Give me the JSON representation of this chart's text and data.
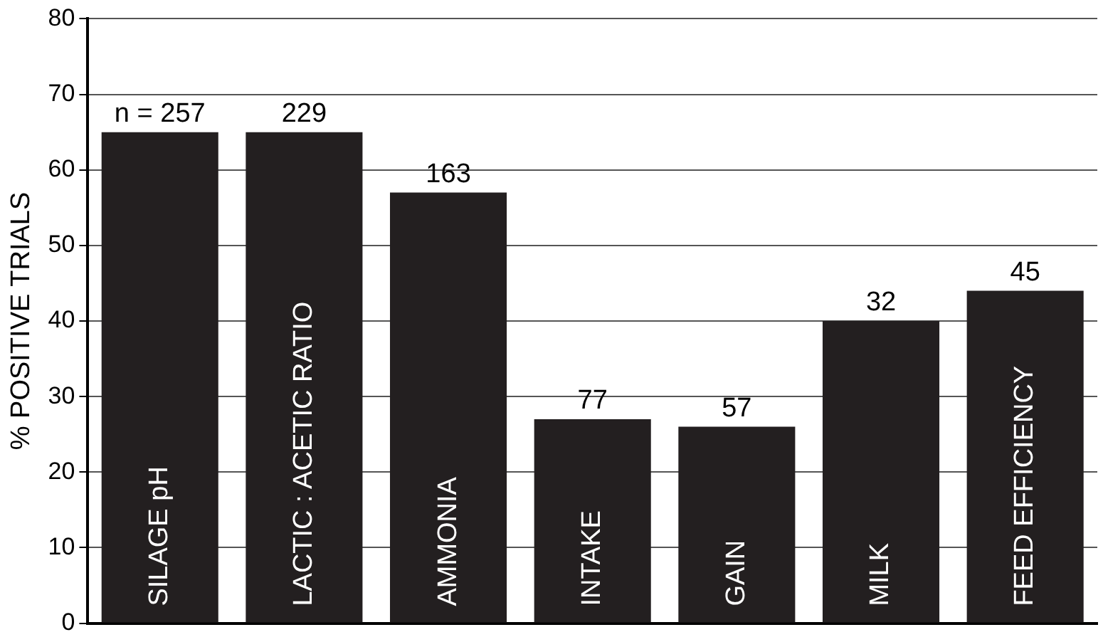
{
  "chart_data": {
    "type": "bar",
    "ylabel": "% POSITIVE TRIALS",
    "categories": [
      "SILAGE pH",
      "LACTIC : ACETIC RATIO",
      "AMMONIA",
      "INTAKE",
      "GAIN",
      "MILK",
      "FEED EFFICIENCY"
    ],
    "values": [
      65,
      65,
      57,
      27,
      26,
      40,
      44
    ],
    "color": "#231f20",
    "ylim": [
      0,
      80
    ],
    "yticks": [
      0,
      10,
      20,
      30,
      40,
      50,
      60,
      70,
      80
    ],
    "grid": "y",
    "legend": false,
    "annotations": [
      {
        "text": "n = 257",
        "x": "SILAGE pH",
        "y": 65
      },
      {
        "text": "229",
        "x": "LACTIC : ACETIC RATIO",
        "y": 65
      },
      {
        "text": "163",
        "x": "AMMONIA",
        "y": 57
      },
      {
        "text": "77",
        "x": "INTAKE",
        "y": 27
      },
      {
        "text": "57",
        "x": "GAIN",
        "y": 26
      },
      {
        "text": "32",
        "x": "MILK",
        "y": 40
      },
      {
        "text": "45",
        "x": "FEED EFFICIENCY",
        "y": 44
      }
    ]
  }
}
